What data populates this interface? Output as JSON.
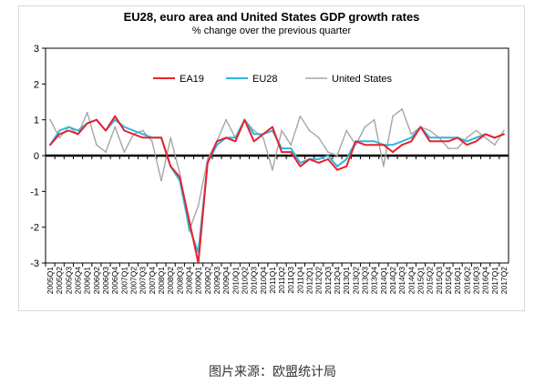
{
  "chart_data": {
    "type": "line",
    "title": "EU28, euro area and United States GDP growth rates",
    "subtitle": "% change over the previous quarter",
    "xlabel": "",
    "ylabel": "",
    "ylim": [
      -3,
      3
    ],
    "yticks": [
      -3,
      -2,
      -1,
      0,
      1,
      2,
      3
    ],
    "grid": false,
    "legend_position": "top",
    "colors": {
      "EA19": "#e8222c",
      "EU28": "#2cb7e0",
      "United States": "#a6a6a6",
      "zero_line": "#000000"
    },
    "categories": [
      "2005Q1",
      "2005Q2",
      "2005Q3",
      "2005Q4",
      "2006Q1",
      "2006Q2",
      "2006Q3",
      "2006Q4",
      "2007Q1",
      "2007Q2",
      "2007Q3",
      "2007Q4",
      "2008Q1",
      "2008Q2",
      "2008Q3",
      "2008Q4",
      "2009Q1",
      "2009Q2",
      "2009Q3",
      "2009Q4",
      "2010Q1",
      "2010Q2",
      "2010Q3",
      "2010Q4",
      "2011Q1",
      "2011Q2",
      "2011Q3",
      "2011Q4",
      "2012Q1",
      "2012Q2",
      "2012Q3",
      "2012Q4",
      "2013Q1",
      "2013Q2",
      "2013Q3",
      "2013Q4",
      "2014Q1",
      "2014Q2",
      "2014Q3",
      "2014Q4",
      "2015Q1",
      "2015Q2",
      "2015Q3",
      "2015Q4",
      "2016Q1",
      "2016Q2",
      "2016Q3",
      "2016Q4",
      "2017Q1",
      "2017Q2"
    ],
    "series": [
      {
        "name": "EA19",
        "values": [
          0.3,
          0.6,
          0.7,
          0.6,
          0.9,
          1.0,
          0.7,
          1.1,
          0.7,
          0.6,
          0.5,
          0.5,
          0.5,
          -0.3,
          -0.6,
          -1.8,
          -3.0,
          -0.2,
          0.4,
          0.5,
          0.4,
          1.0,
          0.4,
          0.6,
          0.8,
          0.1,
          0.1,
          -0.3,
          -0.1,
          -0.2,
          -0.1,
          -0.4,
          -0.3,
          0.4,
          0.3,
          0.3,
          0.3,
          0.1,
          0.3,
          0.4,
          0.8,
          0.4,
          0.4,
          0.4,
          0.5,
          0.3,
          0.4,
          0.6,
          0.5,
          0.6
        ]
      },
      {
        "name": "EU28",
        "values": [
          0.3,
          0.7,
          0.8,
          0.7,
          0.9,
          1.0,
          0.7,
          1.0,
          0.8,
          0.7,
          0.6,
          0.5,
          0.5,
          -0.3,
          -0.7,
          -2.0,
          -2.7,
          -0.2,
          0.3,
          0.5,
          0.5,
          1.0,
          0.6,
          0.6,
          0.7,
          0.2,
          0.2,
          -0.2,
          -0.1,
          -0.1,
          0.0,
          -0.3,
          -0.1,
          0.4,
          0.4,
          0.4,
          0.3,
          0.3,
          0.4,
          0.5,
          0.8,
          0.5,
          0.5,
          0.5,
          0.5,
          0.4,
          0.5,
          0.6,
          0.5,
          0.6
        ]
      },
      {
        "name": "United States",
        "values": [
          1.0,
          0.5,
          0.8,
          0.6,
          1.2,
          0.3,
          0.1,
          0.8,
          0.1,
          0.6,
          0.7,
          0.4,
          -0.7,
          0.5,
          -0.5,
          -2.1,
          -1.4,
          -0.1,
          0.4,
          1.0,
          0.5,
          1.0,
          0.7,
          0.5,
          -0.4,
          0.7,
          0.3,
          1.1,
          0.7,
          0.5,
          0.1,
          0.0,
          0.7,
          0.3,
          0.8,
          1.0,
          -0.3,
          1.1,
          1.3,
          0.6,
          0.8,
          0.7,
          0.5,
          0.2,
          0.2,
          0.5,
          0.7,
          0.5,
          0.3,
          0.7
        ]
      }
    ]
  },
  "source_caption": "图片来源：欧盟统计局"
}
